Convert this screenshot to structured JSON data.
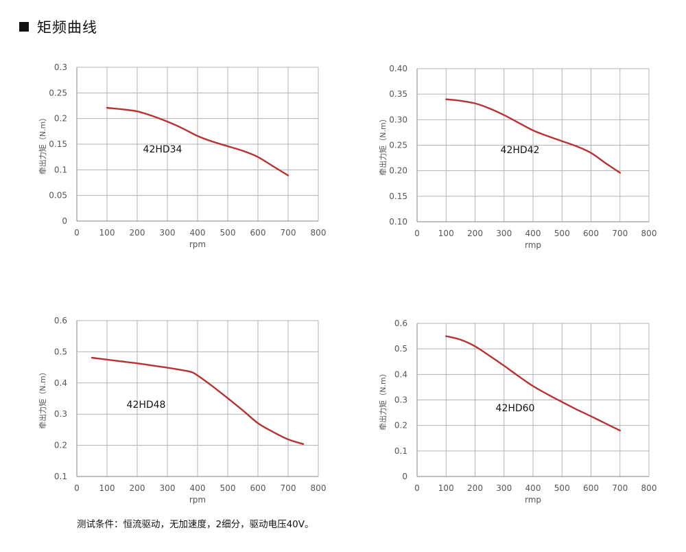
{
  "heading": "矩频曲线",
  "footnote": "测试条件：恒流驱动，无加速度，2细分，驱动电压40V。",
  "colors": {
    "curve": "#b83232",
    "grid": "#b3b3b3",
    "axis": "#808080",
    "text": "#555555"
  },
  "chart_data": [
    {
      "type": "line",
      "title": "42HD34",
      "xlabel": "rpm",
      "ylabel": "牵出力矩（N.m）",
      "xlim": [
        0,
        800
      ],
      "ylim": [
        0,
        0.3
      ],
      "xticks": [
        0,
        100,
        200,
        300,
        400,
        500,
        600,
        700,
        800
      ],
      "xtick_labels": [
        "0",
        "100",
        "200",
        "300",
        "400",
        "500",
        "600",
        "700",
        "800"
      ],
      "yticks": [
        0,
        0.05,
        0.1,
        0.15,
        0.2,
        0.25,
        0.3
      ],
      "ytick_labels": [
        "0",
        "0.05",
        "0.1",
        "0.15",
        "0.2",
        "0.25",
        "0.3"
      ],
      "grid": true,
      "series": [
        {
          "name": "42HD34",
          "x": [
            100,
            150,
            200,
            250,
            300,
            350,
            400,
            450,
            500,
            550,
            600,
            650,
            700
          ],
          "y": [
            0.221,
            0.218,
            0.214,
            0.205,
            0.194,
            0.181,
            0.166,
            0.155,
            0.146,
            0.137,
            0.125,
            0.107,
            0.089
          ]
        }
      ]
    },
    {
      "type": "line",
      "title": "42HD42",
      "xlabel": "rmp",
      "ylabel": "牵出力矩（N.m）",
      "xlim": [
        0,
        800
      ],
      "ylim": [
        0.1,
        0.4
      ],
      "xticks": [
        0,
        100,
        200,
        300,
        400,
        500,
        600,
        700,
        800
      ],
      "xtick_labels": [
        "0",
        "100",
        "200",
        "300",
        "400",
        "500",
        "600",
        "700",
        "800"
      ],
      "yticks": [
        0.1,
        0.15,
        0.2,
        0.25,
        0.3,
        0.35,
        0.4
      ],
      "ytick_labels": [
        "0.10",
        "0.15",
        "0.20",
        "0.25",
        "0.30",
        "0.35",
        "0.40"
      ],
      "grid": true,
      "series": [
        {
          "name": "42HD42",
          "x": [
            100,
            150,
            200,
            250,
            300,
            350,
            400,
            450,
            500,
            550,
            600,
            650,
            700
          ],
          "y": [
            0.34,
            0.337,
            0.332,
            0.322,
            0.309,
            0.294,
            0.279,
            0.268,
            0.258,
            0.248,
            0.235,
            0.215,
            0.196
          ]
        }
      ]
    },
    {
      "type": "line",
      "title": "42HD48",
      "xlabel": "rpm",
      "ylabel": "牵出力矩（N.m）",
      "xlim": [
        0,
        800
      ],
      "ylim": [
        0.1,
        0.6
      ],
      "xticks": [
        0,
        100,
        200,
        300,
        400,
        500,
        600,
        700,
        800
      ],
      "xtick_labels": [
        "0",
        "100",
        "200",
        "300",
        "400",
        "500",
        "600",
        "700",
        "800"
      ],
      "yticks": [
        0.1,
        0.2,
        0.3,
        0.4,
        0.5,
        0.6
      ],
      "ytick_labels": [
        "0.1",
        "0.2",
        "0.3",
        "0.4",
        "0.5",
        "0.6"
      ],
      "grid": true,
      "series": [
        {
          "name": "42HD48",
          "x": [
            50,
            100,
            150,
            200,
            250,
            300,
            350,
            380,
            400,
            450,
            500,
            550,
            600,
            650,
            700,
            750
          ],
          "y": [
            0.481,
            0.475,
            0.469,
            0.463,
            0.456,
            0.449,
            0.441,
            0.435,
            0.424,
            0.389,
            0.351,
            0.312,
            0.271,
            0.243,
            0.219,
            0.204
          ]
        }
      ]
    },
    {
      "type": "line",
      "title": "42HD60",
      "xlabel": "rmp",
      "ylabel": "牵出力矩（N.m）",
      "xlim": [
        0,
        800
      ],
      "ylim": [
        0,
        0.6
      ],
      "xticks": [
        0,
        100,
        200,
        300,
        400,
        500,
        600,
        700,
        800
      ],
      "xtick_labels": [
        "0",
        "100",
        "200",
        "300",
        "400",
        "500",
        "600",
        "700",
        "800"
      ],
      "yticks": [
        0,
        0.1,
        0.2,
        0.3,
        0.4,
        0.5,
        0.6
      ],
      "ytick_labels": [
        "0",
        "0.1",
        "0.2",
        "0.3",
        "0.4",
        "0.5",
        "0.6"
      ],
      "grid": true,
      "series": [
        {
          "name": "42HD60",
          "x": [
            100,
            150,
            200,
            250,
            300,
            350,
            400,
            450,
            500,
            550,
            600,
            650,
            700
          ],
          "y": [
            0.55,
            0.536,
            0.51,
            0.473,
            0.434,
            0.393,
            0.354,
            0.322,
            0.292,
            0.263,
            0.236,
            0.208,
            0.18
          ]
        }
      ]
    }
  ]
}
